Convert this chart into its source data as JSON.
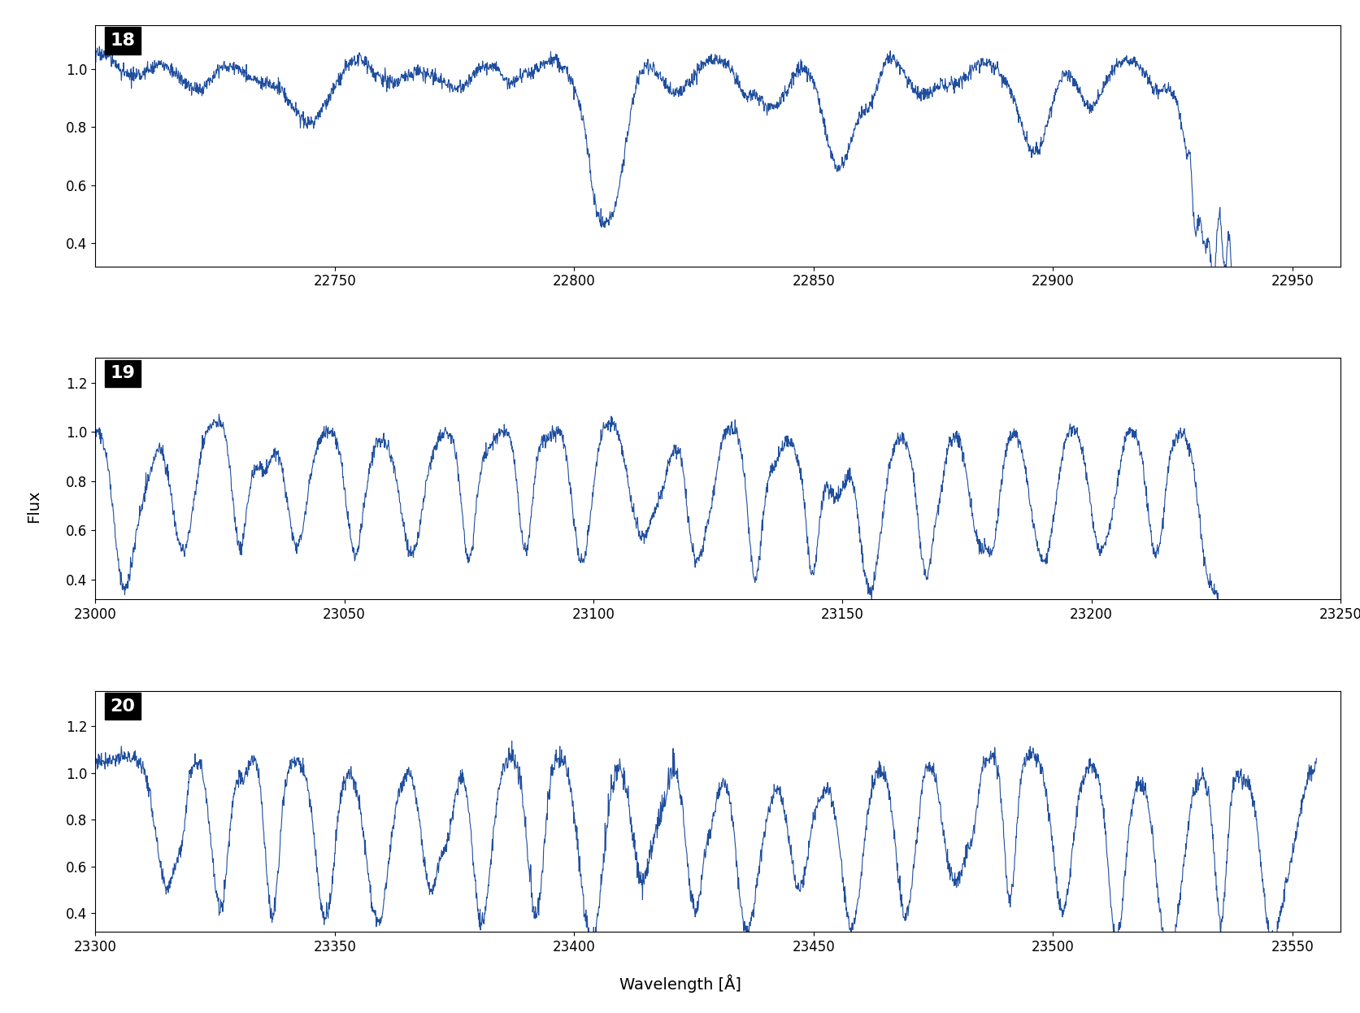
{
  "panels": [
    {
      "order": 18,
      "xmin": 22700,
      "xmax": 22960,
      "ymin": 0.32,
      "ymax": 1.15,
      "yticks": [
        0.4,
        0.6,
        0.8,
        1.0
      ],
      "xticks": [
        22750,
        22800,
        22850,
        22900,
        22950
      ]
    },
    {
      "order": 19,
      "xmin": 23000,
      "xmax": 23250,
      "ymin": 0.32,
      "ymax": 1.3,
      "yticks": [
        0.4,
        0.6,
        0.8,
        1.0,
        1.2
      ],
      "xticks": [
        23000,
        23050,
        23100,
        23150,
        23200,
        23250
      ]
    },
    {
      "order": 20,
      "xmin": 23300,
      "xmax": 23560,
      "ymin": 0.32,
      "ymax": 1.35,
      "yticks": [
        0.4,
        0.6,
        0.8,
        1.0,
        1.2
      ],
      "xticks": [
        23300,
        23350,
        23400,
        23450,
        23500,
        23550
      ]
    }
  ],
  "line_color": "#1f4e9e",
  "line_width": 0.8,
  "xlabel": "Wavelength [Å]",
  "ylabel": "Flux",
  "label_fontsize": 14,
  "tick_fontsize": 12,
  "order_label_fontsize": 16,
  "background_color": "#ffffff"
}
